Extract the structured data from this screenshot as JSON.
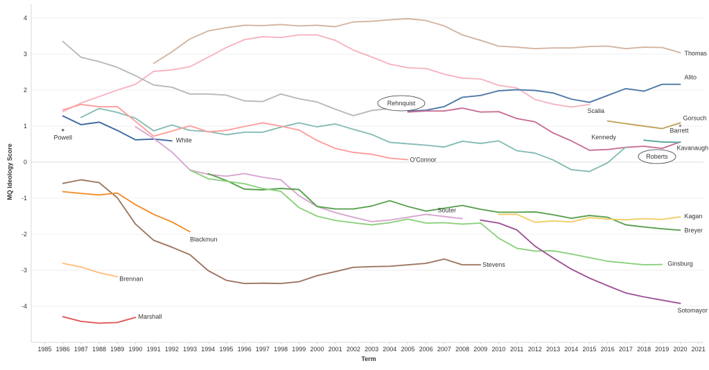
{
  "chart_data": {
    "type": "line",
    "title": "",
    "xlabel": "Term",
    "ylabel": "MQ Ideology Score",
    "xlim": [
      1985,
      2021
    ],
    "ylim": [
      -5,
      4.2
    ],
    "x_ticks": [
      1985,
      1986,
      1987,
      1988,
      1989,
      1990,
      1991,
      1992,
      1993,
      1994,
      1995,
      1996,
      1997,
      1998,
      1999,
      2000,
      2001,
      2002,
      2003,
      2004,
      2005,
      2006,
      2007,
      2008,
      2009,
      2010,
      2011,
      2012,
      2013,
      2014,
      2015,
      2016,
      2017,
      2018,
      2019,
      2020,
      2021
    ],
    "y_ticks": [
      4,
      3,
      2,
      1,
      0,
      -1,
      -2,
      -3,
      -4
    ],
    "grid": "horizontal",
    "legend": "inline labels",
    "series": [
      {
        "name": "Thomas",
        "color": "#d3b4a0",
        "x": [
          1991,
          1992,
          1993,
          1994,
          1995,
          1996,
          1997,
          1998,
          1999,
          2000,
          2001,
          2002,
          2003,
          2004,
          2005,
          2006,
          2007,
          2008,
          2009,
          2010,
          2011,
          2012,
          2013,
          2014,
          2015,
          2016,
          2017,
          2018,
          2019,
          2020
        ],
        "y": [
          2.74,
          3.06,
          3.42,
          3.64,
          3.73,
          3.8,
          3.79,
          3.82,
          3.78,
          3.8,
          3.76,
          3.89,
          3.91,
          3.95,
          3.98,
          3.93,
          3.78,
          3.53,
          3.38,
          3.22,
          3.19,
          3.15,
          3.17,
          3.17,
          3.21,
          3.22,
          3.15,
          3.19,
          3.18,
          3.04
        ]
      },
      {
        "name": "Scalia",
        "color": "#f6b3c0",
        "x": [
          1986,
          1987,
          1988,
          1989,
          1990,
          1991,
          1992,
          1993,
          1994,
          1995,
          1996,
          1997,
          1998,
          1999,
          2000,
          2001,
          2002,
          2003,
          2004,
          2005,
          2006,
          2007,
          2008,
          2009,
          2010,
          2011,
          2012,
          2013,
          2014,
          2015
        ],
        "y": [
          1.4,
          1.64,
          1.82,
          2.0,
          2.16,
          2.52,
          2.56,
          2.65,
          2.91,
          3.18,
          3.4,
          3.48,
          3.46,
          3.53,
          3.53,
          3.38,
          3.11,
          2.92,
          2.72,
          2.62,
          2.6,
          2.44,
          2.33,
          2.31,
          2.13,
          2.06,
          1.74,
          1.61,
          1.53,
          1.6
        ]
      },
      {
        "name": "Rehnquist",
        "color": "#b8b8b8",
        "x": [
          1986,
          1987,
          1988,
          1989,
          1990,
          1991,
          1992,
          1993,
          1994,
          1995,
          1996,
          1997,
          1998,
          1999,
          2000,
          2001,
          2002,
          2003,
          2004
        ],
        "y": [
          3.35,
          2.91,
          2.79,
          2.63,
          2.4,
          2.14,
          2.08,
          1.89,
          1.89,
          1.86,
          1.7,
          1.68,
          1.89,
          1.76,
          1.67,
          1.47,
          1.29,
          1.43,
          1.49
        ]
      },
      {
        "name": "Alito",
        "color": "#4e79a7",
        "x": [
          2005,
          2006,
          2007,
          2008,
          2009,
          2010,
          2011,
          2012,
          2013,
          2014,
          2015,
          2016,
          2017,
          2018,
          2019,
          2020
        ],
        "y": [
          1.42,
          1.44,
          1.54,
          1.8,
          1.85,
          1.98,
          2.01,
          1.99,
          1.92,
          1.75,
          1.66,
          1.85,
          2.04,
          1.97,
          2.16,
          2.16
        ]
      },
      {
        "name": "Roberts",
        "color": "#c86e95",
        "x": [
          2005,
          2006,
          2007,
          2008,
          2009,
          2010,
          2011,
          2012,
          2013,
          2014,
          2015,
          2016,
          2017,
          2018,
          2019,
          2020
        ],
        "y": [
          1.39,
          1.42,
          1.42,
          1.5,
          1.39,
          1.4,
          1.21,
          1.12,
          0.81,
          0.59,
          0.33,
          0.35,
          0.41,
          0.44,
          0.38,
          0.56
        ]
      },
      {
        "name": "Kennedy",
        "color": "#86bcb6",
        "x": [
          1987,
          1988,
          1989,
          1990,
          1991,
          1992,
          1993,
          1994,
          1995,
          1996,
          1997,
          1998,
          1999,
          2000,
          2001,
          2002,
          2003,
          2004,
          2005,
          2006,
          2007,
          2008,
          2009,
          2010,
          2011,
          2012,
          2013,
          2014,
          2015,
          2016,
          2017
        ],
        "y": [
          1.24,
          1.49,
          1.38,
          1.22,
          0.87,
          1.03,
          0.88,
          0.85,
          0.76,
          0.83,
          0.83,
          0.97,
          1.09,
          0.98,
          1.06,
          0.91,
          0.77,
          0.55,
          0.51,
          0.47,
          0.42,
          0.58,
          0.52,
          0.59,
          0.32,
          0.25,
          0.06,
          -0.21,
          -0.26,
          -0.02,
          0.42
        ]
      },
      {
        "name": "O'Connor",
        "color": "#ff9d9a",
        "x": [
          1986,
          1987,
          1988,
          1989,
          1990,
          1991,
          1992,
          1993,
          1994,
          1995,
          1996,
          1997,
          1998,
          1999,
          2000,
          2001,
          2002,
          2003,
          2004,
          2005
        ],
        "y": [
          1.45,
          1.6,
          1.54,
          1.54,
          1.13,
          0.72,
          0.86,
          1.01,
          0.84,
          0.88,
          0.99,
          1.09,
          1.0,
          0.89,
          0.6,
          0.38,
          0.27,
          0.22,
          0.11,
          0.07
        ]
      },
      {
        "name": "White",
        "color": "#3c66a0",
        "x": [
          1986,
          1987,
          1988,
          1989,
          1990,
          1991,
          1992
        ],
        "y": [
          1.28,
          1.04,
          1.11,
          0.88,
          0.62,
          0.64,
          0.59
        ]
      },
      {
        "name": "Powell",
        "color": "#7a7a7a",
        "x": [
          1986
        ],
        "y": [
          0.89
        ]
      },
      {
        "name": "Gorsuch",
        "color": "#c0a25a",
        "x": [
          2016,
          2017,
          2018,
          2019,
          2020
        ],
        "y": [
          1.14,
          1.07,
          1.0,
          0.93,
          1.09
        ]
      },
      {
        "name": "Barrett",
        "color": "#9c9c9c",
        "x": [
          2020
        ],
        "y": [
          1.01
        ]
      },
      {
        "name": "Kavanaugh",
        "color": "#57a29a",
        "x": [
          2018,
          2019,
          2020
        ],
        "y": [
          0.61,
          0.56,
          0.55
        ]
      },
      {
        "name": "Souter",
        "color": "#d7a6cf",
        "x": [
          1990,
          1991,
          1992,
          1993,
          1994,
          1995,
          1996,
          1997,
          1998,
          1999,
          2000,
          2001,
          2002,
          2003,
          2004,
          2005,
          2006,
          2007,
          2008
        ],
        "y": [
          0.98,
          0.66,
          0.28,
          -0.22,
          -0.34,
          -0.39,
          -0.32,
          -0.42,
          -0.49,
          -0.93,
          -1.23,
          -1.4,
          -1.53,
          -1.65,
          -1.61,
          -1.53,
          -1.45,
          -1.51,
          -1.57
        ]
      },
      {
        "name": "Breyer",
        "color": "#59a14f",
        "x": [
          1994,
          1995,
          1996,
          1997,
          1998,
          1999,
          2000,
          2001,
          2002,
          2003,
          2004,
          2005,
          2006,
          2007,
          2008,
          2009,
          2010,
          2011,
          2012,
          2013,
          2014,
          2015,
          2016,
          2017,
          2018,
          2019,
          2020
        ],
        "y": [
          -0.32,
          -0.51,
          -0.75,
          -0.77,
          -0.73,
          -0.76,
          -1.23,
          -1.3,
          -1.3,
          -1.22,
          -1.07,
          -1.23,
          -1.36,
          -1.28,
          -1.2,
          -1.31,
          -1.39,
          -1.39,
          -1.38,
          -1.46,
          -1.56,
          -1.48,
          -1.53,
          -1.74,
          -1.8,
          -1.85,
          -1.89
        ]
      },
      {
        "name": "Ginsburg",
        "color": "#8cd17d",
        "x": [
          1993,
          1994,
          1995,
          1996,
          1997,
          1998,
          1999,
          2000,
          2001,
          2002,
          2003,
          2004,
          2005,
          2006,
          2007,
          2008,
          2009,
          2010,
          2011,
          2012,
          2013,
          2014,
          2015,
          2016,
          2017,
          2018,
          2019
        ],
        "y": [
          -0.22,
          -0.46,
          -0.53,
          -0.6,
          -0.73,
          -0.81,
          -1.26,
          -1.5,
          -1.62,
          -1.68,
          -1.74,
          -1.68,
          -1.58,
          -1.69,
          -1.68,
          -1.72,
          -1.69,
          -2.11,
          -2.39,
          -2.47,
          -2.46,
          -2.55,
          -2.65,
          -2.75,
          -2.8,
          -2.85,
          -2.84
        ]
      },
      {
        "name": "Kagan",
        "color": "#f1ce63",
        "x": [
          2010,
          2011,
          2012,
          2013,
          2014,
          2015,
          2016,
          2017,
          2018,
          2019,
          2020
        ],
        "y": [
          -1.45,
          -1.45,
          -1.67,
          -1.63,
          -1.66,
          -1.54,
          -1.58,
          -1.6,
          -1.57,
          -1.59,
          -1.52
        ]
      },
      {
        "name": "Sotomayor",
        "color": "#a05195",
        "x": [
          2009,
          2010,
          2011,
          2012,
          2013,
          2014,
          2015,
          2016,
          2017,
          2018,
          2019,
          2020
        ],
        "y": [
          -1.61,
          -1.69,
          -1.88,
          -2.33,
          -2.66,
          -2.97,
          -3.22,
          -3.43,
          -3.63,
          -3.74,
          -3.83,
          -3.92
        ]
      },
      {
        "name": "Stevens",
        "color": "#9d7660",
        "x": [
          1986,
          1987,
          1988,
          1989,
          1990,
          1991,
          1992,
          1993,
          1994,
          1995,
          1996,
          1997,
          1998,
          1999,
          2000,
          2001,
          2002,
          2003,
          2004,
          2005,
          2006,
          2007,
          2008,
          2009
        ],
        "y": [
          -0.59,
          -0.49,
          -0.57,
          -0.99,
          -1.72,
          -2.17,
          -2.36,
          -2.57,
          -3.01,
          -3.28,
          -3.37,
          -3.36,
          -3.37,
          -3.32,
          -3.15,
          -3.04,
          -2.92,
          -2.9,
          -2.89,
          -2.85,
          -2.81,
          -2.69,
          -2.85,
          -2.85
        ]
      },
      {
        "name": "Blackmun",
        "color": "#f28e2b",
        "x": [
          1986,
          1987,
          1988,
          1989,
          1990,
          1991,
          1992,
          1993
        ],
        "y": [
          -0.82,
          -0.87,
          -0.91,
          -0.86,
          -1.18,
          -1.45,
          -1.66,
          -1.93
        ]
      },
      {
        "name": "Brennan",
        "color": "#ffbe7d",
        "x": [
          1986,
          1987,
          1988,
          1989
        ],
        "y": [
          -2.81,
          -2.91,
          -3.07,
          -3.18
        ]
      },
      {
        "name": "Marshall",
        "color": "#e15759",
        "x": [
          1986,
          1987,
          1988,
          1989,
          1990
        ],
        "y": [
          -4.29,
          -4.42,
          -4.47,
          -4.45,
          -4.31
        ]
      }
    ]
  }
}
